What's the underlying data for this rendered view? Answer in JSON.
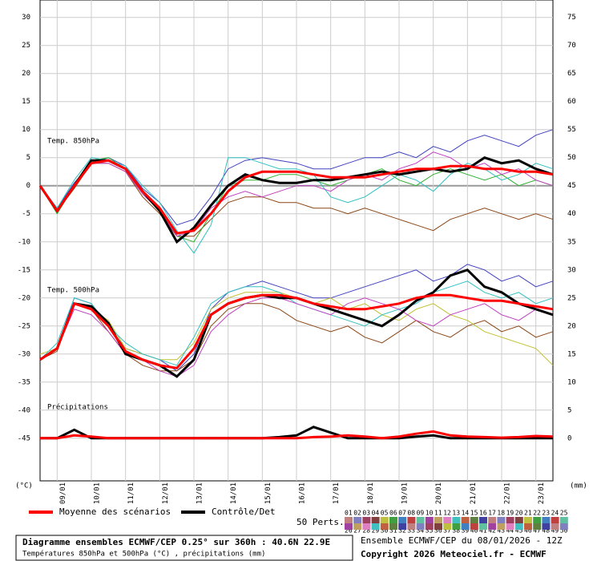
{
  "chart_data": {
    "type": "line",
    "xlim": [
      0,
      360
    ],
    "x": [
      0,
      12,
      24,
      36,
      48,
      60,
      72,
      84,
      96,
      108,
      120,
      132,
      144,
      156,
      168,
      180,
      192,
      204,
      216,
      228,
      240,
      252,
      264,
      276,
      288,
      300,
      312,
      324,
      336,
      348,
      360
    ],
    "xticks": [
      {
        "value": 12,
        "label": "09/01"
      },
      {
        "value": 36,
        "label": "10/01"
      },
      {
        "value": 60,
        "label": "11/01"
      },
      {
        "value": 84,
        "label": "12/01"
      },
      {
        "value": 108,
        "label": "13/01"
      },
      {
        "value": 132,
        "label": "14/01"
      },
      {
        "value": 156,
        "label": "15/01"
      },
      {
        "value": 180,
        "label": "16/01"
      },
      {
        "value": 204,
        "label": "17/01"
      },
      {
        "value": 228,
        "label": "18/01"
      },
      {
        "value": 252,
        "label": "19/01"
      },
      {
        "value": 276,
        "label": "20/01"
      },
      {
        "value": 300,
        "label": "21/01"
      },
      {
        "value": 324,
        "label": "22/01"
      },
      {
        "value": 348,
        "label": "23/01"
      }
    ],
    "ylim": [
      -52.6,
      33.1
    ],
    "yticks": [
      30,
      25,
      20,
      15,
      10,
      5,
      0,
      -5,
      -10,
      -15,
      -20,
      -25,
      -30,
      -35,
      -40,
      -45
    ],
    "y2lim": [
      -7.6,
      78.1
    ],
    "y2ticks": [
      75,
      70,
      65,
      60,
      55,
      50,
      45,
      40,
      35,
      30,
      25,
      20,
      15,
      10,
      5,
      0
    ],
    "grid": true,
    "y_unit": "(°C)",
    "y2_unit": "(mm)",
    "annotations": [
      "Temp. 850hPa",
      "Temp. 500hPa",
      "Précipitations"
    ],
    "series": [
      {
        "color": "#4040c0",
        "values": [
          0,
          -4,
          0.5,
          4,
          5,
          3.5,
          -0.5,
          -3,
          -7,
          -6,
          -2,
          3,
          4.5,
          5,
          4.5,
          4,
          3,
          3,
          4,
          5,
          5,
          6,
          5,
          7,
          6,
          8,
          9,
          8,
          7,
          9,
          10
        ]
      },
      {
        "color": "#8b4513",
        "values": [
          0,
          -4.5,
          -0.5,
          4,
          4,
          2.5,
          -2,
          -5,
          -9,
          -9,
          -6,
          -3,
          -2,
          -2,
          -3,
          -3,
          -4,
          -4,
          -5,
          -4,
          -5,
          -6,
          -7,
          -8,
          -6,
          -5,
          -4,
          -5,
          -6,
          -5,
          -6
        ]
      },
      {
        "color": "#30b030",
        "values": [
          0,
          -5,
          0,
          4.5,
          5,
          3,
          -1,
          -4,
          -9,
          -10,
          -5,
          0,
          1,
          1,
          2,
          2,
          1,
          0,
          1,
          2,
          3,
          1,
          0,
          2,
          3,
          2,
          1,
          2,
          0,
          1,
          0
        ]
      },
      {
        "color": "#30c0c0",
        "values": [
          0,
          -4,
          1,
          5,
          4.5,
          3.5,
          0,
          -3,
          -8,
          -12,
          -7,
          5,
          5,
          4,
          3,
          3,
          2,
          -2,
          -3,
          -2,
          0,
          2,
          1,
          -1,
          2,
          4,
          3,
          1,
          2,
          4,
          3
        ]
      },
      {
        "color": "#c040c0",
        "values": [
          0,
          -4.5,
          0,
          4,
          4,
          2.5,
          -1.5,
          -4.5,
          -9,
          -8,
          -4,
          -2,
          -1,
          -2,
          -1,
          0,
          0,
          -1,
          1,
          2,
          1,
          3,
          4,
          6,
          5,
          3,
          4,
          2,
          3,
          1,
          0
        ]
      },
      {
        "color": "#4040c0",
        "values": [
          -31,
          -29,
          -20,
          -21,
          -25,
          -29,
          -30,
          -31,
          -33,
          -30,
          -22,
          -19,
          -18,
          -17,
          -18,
          -19,
          -20,
          -20,
          -19,
          -18,
          -17,
          -16,
          -15,
          -17,
          -16,
          -14,
          -15,
          -17,
          -16,
          -18,
          -17
        ]
      },
      {
        "color": "#8b4513",
        "values": [
          -31,
          -29.5,
          -21,
          -22,
          -26,
          -30,
          -32,
          -33,
          -33,
          -31,
          -25,
          -22,
          -21,
          -21,
          -22,
          -24,
          -25,
          -26,
          -25,
          -27,
          -28,
          -26,
          -24,
          -26,
          -27,
          -25,
          -24,
          -26,
          -25,
          -27,
          -26
        ]
      },
      {
        "color": "#c0c030",
        "values": [
          -30,
          -29,
          -21,
          -22,
          -24,
          -29,
          -30,
          -31,
          -31,
          -28,
          -22,
          -20,
          -19,
          -19,
          -19,
          -20,
          -21,
          -20,
          -22,
          -21,
          -23,
          -24,
          -22,
          -21,
          -23,
          -24,
          -26,
          -27,
          -28,
          -29,
          -32
        ]
      },
      {
        "color": "#30c0c0",
        "values": [
          -31,
          -28,
          -20,
          -21,
          -25,
          -28,
          -30,
          -31,
          -32,
          -27,
          -21,
          -19,
          -18,
          -18,
          -19,
          -21,
          -22,
          -23,
          -24,
          -25,
          -23,
          -22,
          -21,
          -19,
          -18,
          -17,
          -19,
          -20,
          -19,
          -21,
          -20
        ]
      },
      {
        "color": "#c040c0",
        "values": [
          -31,
          -29,
          -22,
          -23,
          -26,
          -30,
          -31,
          -33,
          -34,
          -32,
          -26,
          -23,
          -21,
          -20,
          -20,
          -21,
          -22,
          -23,
          -21,
          -20,
          -21,
          -22,
          -24,
          -25,
          -23,
          -22,
          -21,
          -23,
          -24,
          -22,
          -23
        ]
      },
      {
        "color": "#000000",
        "role": "control",
        "values": [
          0,
          -4.5,
          0,
          4.5,
          4.5,
          3,
          -1,
          -4.5,
          -10,
          -7.5,
          -3.5,
          0,
          2,
          1,
          0.5,
          0.5,
          1,
          1,
          1.5,
          2,
          2.5,
          2,
          2.5,
          3,
          2.5,
          3,
          5,
          4,
          4.5,
          3,
          2
        ]
      },
      {
        "color": "#ff0000",
        "role": "mean",
        "values": [
          0,
          -4.5,
          0,
          4,
          4.5,
          3,
          -1,
          -4,
          -8.5,
          -8,
          -5,
          -1,
          1.5,
          2.5,
          2.5,
          2.5,
          2,
          1.5,
          1.5,
          1.5,
          2,
          2.5,
          3,
          3,
          3.5,
          3.5,
          3,
          3,
          2.5,
          2.5,
          2
        ]
      },
      {
        "color": "#000000",
        "role": "control",
        "values": [
          -31,
          -29,
          -21,
          -21.5,
          -24.5,
          -30,
          -31,
          -32,
          -34,
          -31,
          -23,
          -21,
          -20,
          -19.5,
          -20,
          -20,
          -21,
          -22,
          -23,
          -24,
          -25,
          -23,
          -20.5,
          -19,
          -16,
          -15,
          -18,
          -19,
          -21,
          -22,
          -23
        ]
      },
      {
        "color": "#ff0000",
        "role": "mean",
        "values": [
          -31,
          -29,
          -21,
          -22,
          -25,
          -29.5,
          -31,
          -32,
          -32.5,
          -29,
          -23,
          -21,
          -20,
          -19.5,
          -19.5,
          -20,
          -21,
          -21.5,
          -22,
          -22,
          -21.5,
          -21,
          -20,
          -19.5,
          -19.5,
          -20,
          -20.5,
          -20.5,
          -21,
          -21.5,
          -22
        ]
      },
      {
        "color": "#000000",
        "role": "control",
        "axis": "y2",
        "values": [
          0,
          0,
          1.5,
          0,
          0,
          0,
          0,
          0,
          0,
          0,
          0,
          0,
          0,
          0,
          0.2,
          0.5,
          2,
          1,
          0,
          0,
          0,
          0,
          0.3,
          0.5,
          0,
          0,
          0,
          0,
          0,
          0,
          0
        ]
      },
      {
        "color": "#ff0000",
        "role": "mean",
        "axis": "y2",
        "values": [
          0,
          0,
          0.5,
          0.3,
          0,
          0,
          0,
          0,
          0,
          0,
          0,
          0,
          0,
          0,
          0,
          0,
          0.2,
          0.3,
          0.5,
          0.3,
          0,
          0.3,
          0.8,
          1.2,
          0.5,
          0.3,
          0.2,
          0.1,
          0.2,
          0.4,
          0.3
        ]
      }
    ],
    "legend": {
      "mean": "Moyenne des scénarios",
      "control": "Contrôle/Det",
      "perts": "50 Perts.",
      "numbers": [
        "01",
        "02",
        "03",
        "04",
        "05",
        "06",
        "07",
        "08",
        "09",
        "10",
        "11",
        "12",
        "13",
        "14",
        "15",
        "16",
        "17",
        "18",
        "19",
        "20",
        "21",
        "22",
        "23",
        "24",
        "25",
        "26",
        "27",
        "28",
        "29",
        "30",
        "31",
        "32",
        "33",
        "34",
        "35",
        "36",
        "37",
        "38",
        "39",
        "40",
        "41",
        "42",
        "43",
        "44",
        "45",
        "46",
        "47",
        "48",
        "49",
        "50"
      ]
    },
    "footer": {
      "title": "Diagramme ensembles ECMWF/CEP 0.25° sur 360h : 40.6N 22.9E",
      "subtitle": "Températures 850hPa et 500hPa (°C) , précipitations (mm)",
      "run": "Ensemble ECMWF/CEP du 08/01/2026 - 12Z",
      "copyright": "Copyright 2026 Meteociel.fr - ECMWF"
    }
  }
}
